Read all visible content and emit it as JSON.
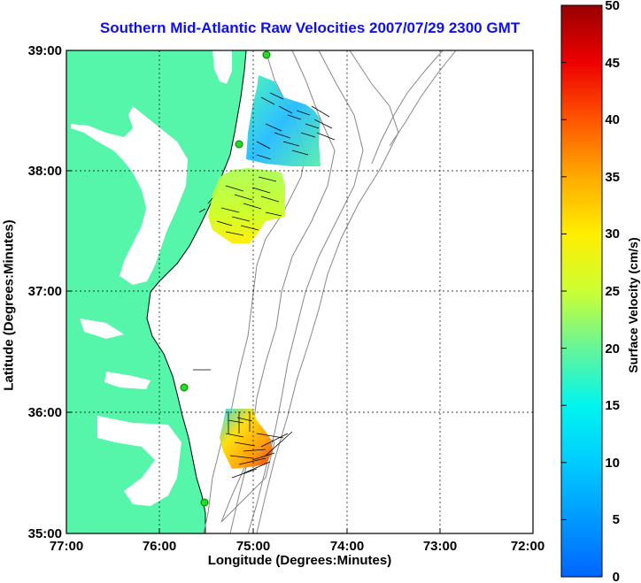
{
  "title": "Southern Mid-Atlantic Raw Velocities 2007/07/29 2300 GMT",
  "xlabel": "Longitude (Degrees:Minutes)",
  "ylabel": "Latitude (Degrees:Minutes)",
  "x_ticks": [
    "77:00",
    "76:00",
    "75:00",
    "74:00",
    "73:00",
    "72:00"
  ],
  "y_ticks": [
    "39:00",
    "38:00",
    "37:00",
    "36:00",
    "35:00"
  ],
  "colorbar": {
    "label": "Surface Velocity (cm/s)",
    "ticks": [
      "50",
      "45",
      "40",
      "35",
      "30",
      "25",
      "20",
      "15",
      "10",
      "5",
      "0"
    ],
    "min": 0,
    "max": 50
  },
  "colors": {
    "land": "#55f5aa",
    "water": "#ffffff",
    "title": "#1010ee",
    "station": "#22dd22"
  },
  "chart_data": {
    "type": "vector-field-map",
    "title": "Southern Mid-Atlantic Raw Velocities 2007/07/29 2300 GMT",
    "xlabel": "Longitude (Degrees:Minutes)",
    "ylabel": "Latitude (Degrees:Minutes)",
    "xlim": [
      -77,
      -72
    ],
    "ylim": [
      35,
      39
    ],
    "colorbar_range": [
      0,
      50
    ],
    "grid": true,
    "stations": [
      {
        "lon": -74.87,
        "lat": 38.95
      },
      {
        "lon": -75.15,
        "lat": 38.23
      },
      {
        "lon": -75.6,
        "lat": 36.2
      },
      {
        "lon": -75.5,
        "lat": 35.28
      }
    ],
    "velocity_regions": [
      {
        "name": "north",
        "approx_speed_cm_s": [
          8,
          18
        ],
        "center": [
          -74.8,
          38.45
        ]
      },
      {
        "name": "middle",
        "approx_speed_cm_s": [
          18,
          28
        ],
        "center": [
          -75.3,
          37.7
        ]
      },
      {
        "name": "south",
        "approx_speed_cm_s": [
          22,
          42
        ],
        "center": [
          -75.1,
          35.7
        ]
      }
    ]
  }
}
